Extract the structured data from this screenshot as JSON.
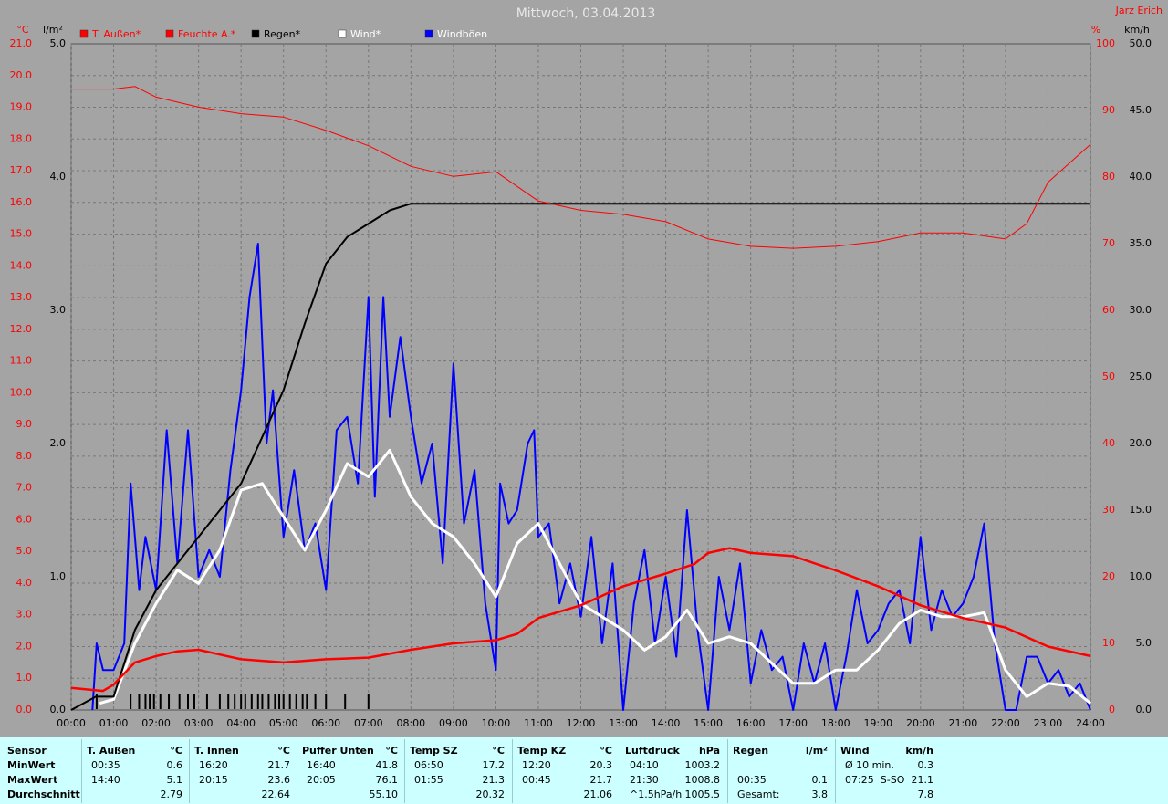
{
  "chart_data": {
    "type": "line",
    "title": "Mittwoch, 03.04.2013",
    "author": "Jarz Erich",
    "xlim": [
      0,
      24
    ],
    "xticks": [
      {
        "value": 0,
        "label": "00:00"
      },
      {
        "value": 1,
        "label": "01:00"
      },
      {
        "value": 2,
        "label": "02:00"
      },
      {
        "value": 3,
        "label": "03:00"
      },
      {
        "value": 4,
        "label": "04:00"
      },
      {
        "value": 5,
        "label": "05:00"
      },
      {
        "value": 6,
        "label": "06:00"
      },
      {
        "value": 7,
        "label": "07:00"
      },
      {
        "value": 8,
        "label": "08:00"
      },
      {
        "value": 9,
        "label": "09:00"
      },
      {
        "value": 10,
        "label": "10:00"
      },
      {
        "value": 11,
        "label": "11:00"
      },
      {
        "value": 12,
        "label": "12:00"
      },
      {
        "value": 13,
        "label": "13:00"
      },
      {
        "value": 14,
        "label": "14:00"
      },
      {
        "value": 15,
        "label": "15:00"
      },
      {
        "value": 16,
        "label": "16:00"
      },
      {
        "value": 17,
        "label": "17:00"
      },
      {
        "value": 18,
        "label": "18:00"
      },
      {
        "value": 19,
        "label": "19:00"
      },
      {
        "value": 20,
        "label": "20:00"
      },
      {
        "value": 21,
        "label": "21:00"
      },
      {
        "value": 22,
        "label": "22:00"
      },
      {
        "value": 23,
        "label": "23:00"
      },
      {
        "value": 24,
        "label": "24:00"
      }
    ],
    "grid": true,
    "grid_axis": 0,
    "axes": [
      {
        "label": "°C",
        "color": "#ff0000",
        "lim": [
          0,
          21
        ],
        "ticks": [
          {
            "value": 0,
            "label": "0.0"
          },
          {
            "value": 1,
            "label": "1.0"
          },
          {
            "value": 2,
            "label": "2.0"
          },
          {
            "value": 3,
            "label": "3.0"
          },
          {
            "value": 4,
            "label": "4.0"
          },
          {
            "value": 5,
            "label": "5.0"
          },
          {
            "value": 6,
            "label": "6.0"
          },
          {
            "value": 7,
            "label": "7.0"
          },
          {
            "value": 8,
            "label": "8.0"
          },
          {
            "value": 9,
            "label": "9.0"
          },
          {
            "value": 10,
            "label": "10.0"
          },
          {
            "value": 11,
            "label": "11.0"
          },
          {
            "value": 12,
            "label": "12.0"
          },
          {
            "value": 13,
            "label": "13.0"
          },
          {
            "value": 14,
            "label": "14.0"
          },
          {
            "value": 15,
            "label": "15.0"
          },
          {
            "value": 16,
            "label": "16.0"
          },
          {
            "value": 17,
            "label": "17.0"
          },
          {
            "value": 18,
            "label": "18.0"
          },
          {
            "value": 19,
            "label": "19.0"
          },
          {
            "value": 20,
            "label": "20.0"
          },
          {
            "value": 21,
            "label": "21.0"
          }
        ]
      },
      {
        "label": "l/m²",
        "color": "#000000",
        "lim": [
          0,
          5
        ],
        "ticks": [
          {
            "value": 0,
            "label": "0.0"
          },
          {
            "value": 1,
            "label": "1.0"
          },
          {
            "value": 2,
            "label": "2.0"
          },
          {
            "value": 3,
            "label": "3.0"
          },
          {
            "value": 4,
            "label": "4.0"
          },
          {
            "value": 5,
            "label": "5.0"
          }
        ]
      },
      {
        "label": "%",
        "color": "#ff0000",
        "lim": [
          0,
          100
        ],
        "ticks": [
          0,
          10,
          20,
          30,
          40,
          50,
          60,
          70,
          80,
          90,
          100
        ]
      },
      {
        "label": "km/h",
        "color": "#000000",
        "lim": [
          0,
          50
        ],
        "ticks": [
          {
            "value": 0,
            "label": "0.0"
          },
          {
            "value": 5,
            "label": "5.0"
          },
          {
            "value": 10,
            "label": "10.0"
          },
          {
            "value": 15,
            "label": "15.0"
          },
          {
            "value": 20,
            "label": "20.0"
          },
          {
            "value": 25,
            "label": "25.0"
          },
          {
            "value": 30,
            "label": "30.0"
          },
          {
            "value": 35,
            "label": "35.0"
          },
          {
            "value": 40,
            "label": "40.0"
          },
          {
            "value": 45,
            "label": "45.0"
          },
          {
            "value": 50,
            "label": "50.0"
          }
        ]
      }
    ],
    "series": [
      {
        "name": "T. Außen*",
        "color": "#ff0000",
        "text_color": "#ff0000",
        "axis": 0,
        "width": 2.5,
        "x": [
          0,
          0.75,
          1,
          1.5,
          2,
          2.5,
          3,
          3.5,
          4,
          5,
          6,
          7,
          8,
          9,
          10,
          10.5,
          11,
          12,
          13,
          14,
          14.67,
          15,
          15.5,
          16,
          17,
          18,
          19,
          20,
          21,
          22,
          23,
          24
        ],
        "values": [
          0.7,
          0.6,
          0.8,
          1.5,
          1.7,
          1.85,
          1.9,
          1.75,
          1.6,
          1.5,
          1.6,
          1.65,
          1.9,
          2.1,
          2.2,
          2.4,
          2.9,
          3.3,
          3.9,
          4.3,
          4.6,
          4.95,
          5.1,
          4.95,
          4.85,
          4.4,
          3.9,
          3.3,
          2.9,
          2.6,
          2.0,
          1.7
        ]
      },
      {
        "name": "Feuchte A.*",
        "color": "#ff0000",
        "text_color": "#ff0000",
        "axis": 2,
        "width": 1,
        "x": [
          0,
          1,
          1.5,
          2,
          3,
          4,
          5,
          6,
          7,
          8,
          9,
          10,
          11,
          12,
          13,
          14,
          15,
          16,
          17,
          18,
          19,
          20,
          21,
          22,
          22.5,
          23,
          24
        ],
        "values": [
          93.2,
          93.2,
          93.6,
          92,
          90.5,
          89.5,
          89,
          87,
          84.7,
          81.6,
          80.1,
          80.8,
          76.4,
          75,
          74.4,
          73.3,
          70.7,
          69.6,
          69.3,
          69.6,
          70.3,
          71.6,
          71.6,
          70.7,
          73,
          79.2,
          84.9
        ]
      },
      {
        "name": "Regen*",
        "color": "#000000",
        "text_color": "#000000",
        "axis": 1,
        "width": 2,
        "x": [
          0,
          0.58,
          1,
          1.5,
          2,
          3,
          4,
          5,
          5.5,
          6,
          6.5,
          7,
          7.5,
          8,
          24
        ],
        "values": [
          0,
          0.1,
          0.1,
          0.6,
          0.9,
          1.3,
          1.7,
          2.4,
          2.9,
          3.35,
          3.55,
          3.65,
          3.75,
          3.8,
          3.8
        ]
      },
      {
        "name": "Wind*",
        "color": "#ffffff",
        "text_color": "#ffffff",
        "axis": 3,
        "width": 3,
        "x": [
          0.67,
          1,
          1.5,
          2,
          2.5,
          3,
          3.5,
          4,
          4.5,
          5,
          5.5,
          6,
          6.5,
          7,
          7.5,
          8,
          8.5,
          9,
          9.5,
          10,
          10.5,
          11,
          11.5,
          12,
          12.5,
          13,
          13.5,
          14,
          14.5,
          15,
          15.5,
          16,
          16.5,
          17,
          17.5,
          18,
          18.5,
          19,
          19.5,
          20,
          20.5,
          21,
          21.5,
          22,
          22.5,
          23,
          23.5,
          24
        ],
        "values": [
          0.5,
          0.8,
          5,
          8,
          10.5,
          9.5,
          12,
          16.5,
          17,
          14.5,
          12,
          15,
          18.5,
          17.5,
          19.5,
          16,
          14,
          13,
          11,
          8.5,
          12.5,
          14,
          11,
          8,
          7,
          6,
          4.5,
          5.5,
          7.5,
          5,
          5.5,
          5,
          3.5,
          2,
          2,
          3,
          3,
          4.5,
          6.5,
          7.5,
          7,
          7,
          7.3,
          3,
          1,
          2,
          1.8,
          0.5
        ]
      },
      {
        "name": "Windböen",
        "color": "#0000ff",
        "text_color": "#ffffff",
        "axis": 3,
        "width": 2,
        "x": [
          0.5,
          0.6,
          0.75,
          1,
          1.25,
          1.4,
          1.6,
          1.75,
          2,
          2.25,
          2.5,
          2.75,
          3,
          3.25,
          3.5,
          3.75,
          4,
          4.2,
          4.4,
          4.6,
          4.75,
          5,
          5.25,
          5.5,
          5.75,
          6,
          6.25,
          6.5,
          6.75,
          7,
          7.15,
          7.35,
          7.5,
          7.75,
          8,
          8.25,
          8.5,
          8.75,
          9,
          9.25,
          9.5,
          9.75,
          10,
          10.1,
          10.3,
          10.5,
          10.75,
          10.9,
          11,
          11.25,
          11.5,
          11.75,
          12,
          12.25,
          12.5,
          12.75,
          13,
          13.25,
          13.5,
          13.75,
          14,
          14.25,
          14.5,
          14.75,
          15,
          15.25,
          15.5,
          15.75,
          16,
          16.25,
          16.5,
          16.75,
          17,
          17.25,
          17.5,
          17.75,
          18,
          18.25,
          18.5,
          18.75,
          19,
          19.25,
          19.5,
          19.75,
          20,
          20.25,
          20.5,
          20.75,
          21,
          21.25,
          21.5,
          21.75,
          22,
          22.25,
          22.5,
          22.75,
          23,
          23.25,
          23.5,
          23.75,
          24
        ],
        "values": [
          0,
          5,
          3,
          3,
          5,
          17,
          9,
          13,
          9,
          21,
          11,
          21,
          10,
          12,
          10,
          18,
          24,
          31,
          35,
          20,
          24,
          13,
          18,
          12,
          14,
          9,
          21,
          22,
          17,
          31,
          16,
          31,
          22,
          28,
          22,
          17,
          20,
          11,
          26,
          14,
          18,
          8,
          3,
          17,
          14,
          15,
          20,
          21,
          13,
          14,
          8,
          11,
          7,
          13,
          5,
          11,
          0,
          8,
          12,
          5,
          10,
          4,
          15,
          6,
          0,
          10,
          6,
          11,
          2,
          6,
          3,
          4,
          0,
          5,
          2,
          5,
          0,
          4,
          9,
          5,
          6,
          8,
          9,
          5,
          13,
          6,
          9,
          7,
          8,
          10,
          14,
          5,
          0,
          0,
          4,
          4,
          2,
          3,
          1,
          2,
          0
        ]
      }
    ],
    "rain_events": [
      0.6,
      1.4,
      1.6,
      1.75,
      1.85,
      1.95,
      2.1,
      2.3,
      2.55,
      2.75,
      2.9,
      3.2,
      3.5,
      3.7,
      3.85,
      4.0,
      4.1,
      4.25,
      4.4,
      4.5,
      4.65,
      4.8,
      4.9,
      5.0,
      5.15,
      5.3,
      5.45,
      5.55,
      5.75,
      6.0,
      6.45,
      7.0
    ]
  },
  "table": {
    "columns": [
      {
        "name": "Sensor"
      },
      {
        "name": "T. Außen",
        "unit": "°C"
      },
      {
        "name": "T. Innen",
        "unit": "°C"
      },
      {
        "name": "Puffer Unten",
        "unit": "°C"
      },
      {
        "name": "Temp SZ",
        "unit": "°C"
      },
      {
        "name": "Temp KZ",
        "unit": "°C"
      },
      {
        "name": "Luftdruck",
        "unit": "hPa"
      },
      {
        "name": "Regen",
        "unit": "l/m²"
      },
      {
        "name": "Wind",
        "unit": "km/h"
      }
    ],
    "rows": [
      {
        "label": "MinWert",
        "cells": [
          [
            "00:35",
            "0.6"
          ],
          [
            "16:20",
            "21.7"
          ],
          [
            "16:40",
            "41.8"
          ],
          [
            "06:50",
            "17.2"
          ],
          [
            "12:20",
            "20.3"
          ],
          [
            "04:10",
            "1003.2"
          ],
          [],
          [
            "Ø 10 min.",
            "0.3"
          ]
        ]
      },
      {
        "label": "MaxWert",
        "cells": [
          [
            "14:40",
            "5.1"
          ],
          [
            "20:15",
            "23.6"
          ],
          [
            "20:05",
            "76.1"
          ],
          [
            "01:55",
            "21.3"
          ],
          [
            "00:45",
            "21.7"
          ],
          [
            "21:30",
            "1008.8"
          ],
          [
            "00:35",
            "0.1"
          ],
          [
            "07:25",
            "S-SO",
            "21.1"
          ]
        ]
      },
      {
        "label": "Durchschnitt",
        "cells": [
          [
            "2.79"
          ],
          [
            "22.64"
          ],
          [
            "55.10"
          ],
          [
            "20.32"
          ],
          [
            "21.06"
          ],
          [
            "^1.5hPa/h",
            "1005.5"
          ],
          [
            "Gesamt:",
            "3.8"
          ],
          [
            "7.8"
          ]
        ]
      }
    ]
  }
}
